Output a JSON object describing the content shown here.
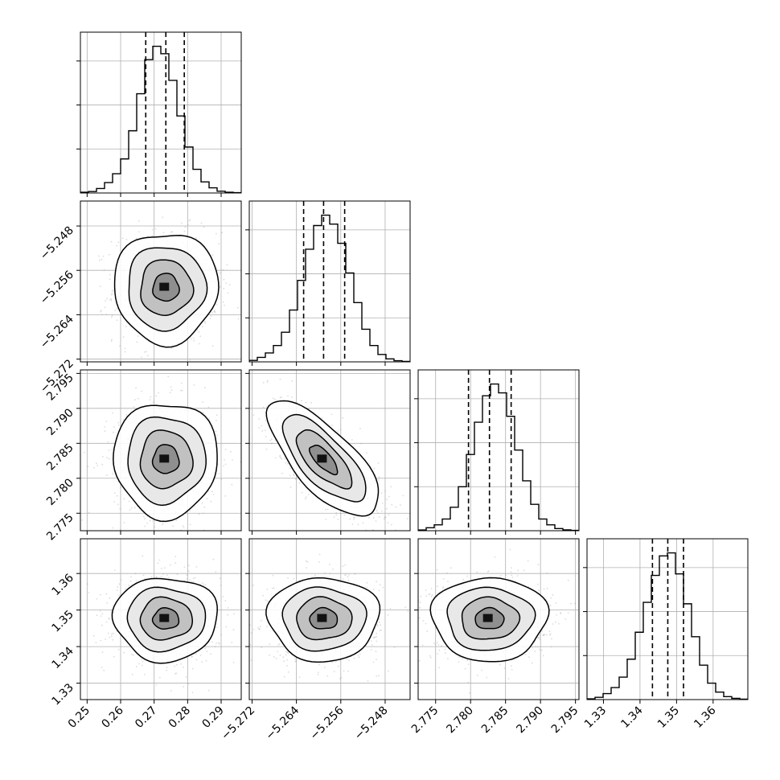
{
  "chart_data": {
    "type": "corner",
    "parameters": [
      {
        "index": 0,
        "label": "",
        "range": [
          0.248,
          0.296
        ],
        "quantiles": [
          0.2675,
          0.2735,
          0.279
        ],
        "ticks": [
          0.25,
          0.26,
          0.27,
          0.28,
          0.29
        ],
        "tick_labels": [
          "0.25",
          "0.26",
          "0.27",
          "0.28",
          "0.29"
        ],
        "histogram": {
          "bin_edges_start": 0.248,
          "bin_width": 0.0024,
          "counts": [
            0.005,
            0.01,
            0.03,
            0.07,
            0.13,
            0.23,
            0.42,
            0.67,
            0.9,
            0.99,
            0.94,
            0.76,
            0.52,
            0.31,
            0.16,
            0.075,
            0.035,
            0.012,
            0.005,
            0.002
          ]
        }
      },
      {
        "index": 1,
        "label": "",
        "range": [
          -5.2725,
          -5.2435
        ],
        "quantiles": [
          -5.2627,
          -5.2591,
          -5.2553
        ],
        "ticks": [
          -5.272,
          -5.264,
          -5.256,
          -5.248
        ],
        "tick_labels": [
          "−5.272",
          "−5.264",
          "−5.256",
          "−5.248"
        ],
        "histogram": {
          "bin_edges_start": -5.2725,
          "bin_width": 0.00145,
          "counts": [
            0.01,
            0.03,
            0.06,
            0.11,
            0.2,
            0.35,
            0.55,
            0.76,
            0.92,
            0.99,
            0.93,
            0.8,
            0.6,
            0.4,
            0.22,
            0.11,
            0.05,
            0.02,
            0.008,
            0.003
          ]
        }
      },
      {
        "index": 2,
        "label": "",
        "range": [
          2.7725,
          2.7955
        ],
        "quantiles": [
          2.7797,
          2.7827,
          2.7858
        ],
        "ticks": [
          2.775,
          2.78,
          2.785,
          2.79,
          2.795
        ],
        "tick_labels": [
          "2.775",
          "2.780",
          "2.785",
          "2.790",
          "2.795"
        ],
        "histogram": {
          "bin_edges_start": 2.7725,
          "bin_width": 0.00115,
          "counts": [
            0.005,
            0.02,
            0.04,
            0.08,
            0.16,
            0.3,
            0.52,
            0.74,
            0.92,
            1.0,
            0.94,
            0.78,
            0.55,
            0.34,
            0.18,
            0.08,
            0.04,
            0.015,
            0.006,
            0.002
          ]
        }
      },
      {
        "index": 3,
        "label": "",
        "range": [
          1.3255,
          1.3695
        ],
        "quantiles": [
          1.3434,
          1.3476,
          1.3519
        ],
        "ticks": [
          1.33,
          1.34,
          1.35,
          1.36
        ],
        "tick_labels": [
          "1.33",
          "1.34",
          "1.35",
          "1.36"
        ],
        "histogram": {
          "bin_edges_start": 1.3255,
          "bin_width": 0.0022,
          "counts": [
            0.005,
            0.015,
            0.04,
            0.08,
            0.15,
            0.27,
            0.45,
            0.65,
            0.83,
            0.96,
            0.98,
            0.84,
            0.64,
            0.42,
            0.23,
            0.11,
            0.05,
            0.02,
            0.008,
            0.003
          ]
        }
      }
    ],
    "correlations": {
      "1_0": 0.0,
      "2_0": 0.0,
      "2_1": -0.72,
      "3_0": 0.0,
      "3_1": 0.0,
      "3_2": 0.0
    },
    "contour_levels_sigma": [
      0.5,
      1.0,
      1.5,
      2.0
    ],
    "grid": true,
    "colors": {
      "line": "#000000",
      "grid": "#b0b0b0",
      "points": "#9a9a9a"
    }
  }
}
